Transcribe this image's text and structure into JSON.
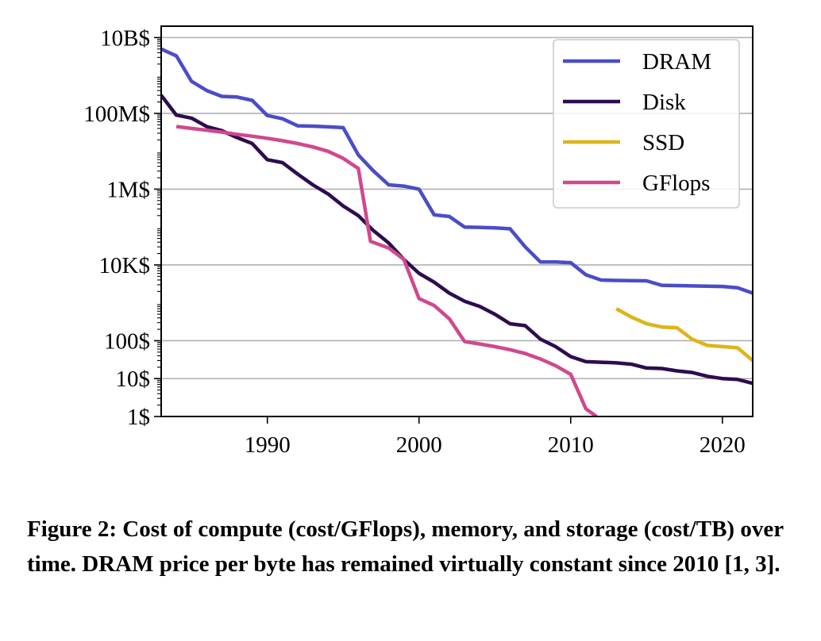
{
  "chart_data": {
    "type": "line",
    "y_scale": "log",
    "xlim": [
      1983,
      2022
    ],
    "ylim": [
      1,
      20000000000
    ],
    "grid": "horizontal",
    "legend_position": "top-right",
    "x_ticks": [
      {
        "value": 1990,
        "label": "1990"
      },
      {
        "value": 2000,
        "label": "2000"
      },
      {
        "value": 2010,
        "label": "2010"
      },
      {
        "value": 2020,
        "label": "2020"
      }
    ],
    "y_ticks": [
      {
        "value": 1,
        "label": "1$"
      },
      {
        "value": 10,
        "label": "10$"
      },
      {
        "value": 100,
        "label": "100$"
      },
      {
        "value": 10000,
        "label": "10K$"
      },
      {
        "value": 1000000,
        "label": "1M$"
      },
      {
        "value": 100000000,
        "label": "100M$"
      },
      {
        "value": 10000000000,
        "label": "10B$"
      }
    ],
    "series": [
      {
        "name": "DRAM",
        "color": "#4a4dc8",
        "points": [
          [
            1983,
            5000000000
          ],
          [
            1984,
            3300000000
          ],
          [
            1985,
            700000000
          ],
          [
            1986,
            400000000
          ],
          [
            1987,
            280000000
          ],
          [
            1988,
            270000000
          ],
          [
            1989,
            220000000
          ],
          [
            1990,
            88000000
          ],
          [
            1991,
            72000000
          ],
          [
            1992,
            47000000
          ],
          [
            1993,
            46000000
          ],
          [
            1994,
            44000000
          ],
          [
            1995,
            42000000
          ],
          [
            1996,
            8000000
          ],
          [
            1997,
            3000000
          ],
          [
            1998,
            1300000
          ],
          [
            1999,
            1200000
          ],
          [
            2000,
            1000000
          ],
          [
            2001,
            210000
          ],
          [
            2002,
            190000
          ],
          [
            2003,
            100000
          ],
          [
            2004,
            98000
          ],
          [
            2005,
            95000
          ],
          [
            2006,
            90000
          ],
          [
            2007,
            30000
          ],
          [
            2008,
            12000
          ],
          [
            2009,
            12000
          ],
          [
            2010,
            11500
          ],
          [
            2011,
            5500
          ],
          [
            2012,
            4000
          ],
          [
            2013,
            3900
          ],
          [
            2014,
            3850
          ],
          [
            2015,
            3800
          ],
          [
            2016,
            2900
          ],
          [
            2017,
            2850
          ],
          [
            2018,
            2800
          ],
          [
            2019,
            2750
          ],
          [
            2020,
            2700
          ],
          [
            2021,
            2500
          ],
          [
            2022,
            1800
          ]
        ]
      },
      {
        "name": "Disk",
        "color": "#2e0c4f",
        "points": [
          [
            1983,
            300000000
          ],
          [
            1984,
            90000000
          ],
          [
            1985,
            75000000
          ],
          [
            1986,
            45000000
          ],
          [
            1987,
            35000000
          ],
          [
            1988,
            23000000
          ],
          [
            1989,
            16000000
          ],
          [
            1990,
            6000000
          ],
          [
            1991,
            5000000
          ],
          [
            1992,
            2500000
          ],
          [
            1993,
            1300000
          ],
          [
            1994,
            750000
          ],
          [
            1995,
            360000
          ],
          [
            1996,
            200000
          ],
          [
            1997,
            80000
          ],
          [
            1998,
            38000
          ],
          [
            1999,
            14000
          ],
          [
            2000,
            6000
          ],
          [
            2001,
            3500
          ],
          [
            2002,
            1800
          ],
          [
            2003,
            1100
          ],
          [
            2004,
            800
          ],
          [
            2005,
            500
          ],
          [
            2006,
            280
          ],
          [
            2007,
            250
          ],
          [
            2008,
            110
          ],
          [
            2009,
            70
          ],
          [
            2010,
            38
          ],
          [
            2011,
            28
          ],
          [
            2012,
            27
          ],
          [
            2013,
            26
          ],
          [
            2014,
            24
          ],
          [
            2015,
            19
          ],
          [
            2016,
            18.5
          ],
          [
            2017,
            16
          ],
          [
            2018,
            14.5
          ],
          [
            2019,
            11.5
          ],
          [
            2020,
            10
          ],
          [
            2021,
            9.5
          ],
          [
            2022,
            7.5
          ]
        ]
      },
      {
        "name": "SSD",
        "color": "#dfb419",
        "points": [
          [
            2013,
            700
          ],
          [
            2014,
            420
          ],
          [
            2015,
            280
          ],
          [
            2016,
            230
          ],
          [
            2017,
            220
          ],
          [
            2018,
            110
          ],
          [
            2019,
            75
          ],
          [
            2020,
            70
          ],
          [
            2021,
            65
          ],
          [
            2022,
            30
          ]
        ]
      },
      {
        "name": "GFlops",
        "color": "#d0488e",
        "points": [
          [
            1984,
            45000000
          ],
          [
            1985,
            40000000
          ],
          [
            1986,
            36000000
          ],
          [
            1987,
            32000000
          ],
          [
            1988,
            28000000
          ],
          [
            1989,
            25000000
          ],
          [
            1990,
            22000000
          ],
          [
            1991,
            19000000
          ],
          [
            1992,
            16000000
          ],
          [
            1993,
            13000000
          ],
          [
            1994,
            10000000
          ],
          [
            1995,
            6500000
          ],
          [
            1996,
            3500000
          ],
          [
            1996.8,
            42000
          ],
          [
            1998,
            28000
          ],
          [
            1999,
            14000
          ],
          [
            2000,
            1300
          ],
          [
            2001,
            850
          ],
          [
            2002,
            380
          ],
          [
            2003,
            95
          ],
          [
            2004,
            82
          ],
          [
            2005,
            70
          ],
          [
            2006,
            58
          ],
          [
            2007,
            46
          ],
          [
            2008,
            33
          ],
          [
            2009,
            22
          ],
          [
            2010,
            13
          ],
          [
            2011,
            1.6
          ],
          [
            2011.7,
            1
          ]
        ]
      }
    ]
  },
  "caption": "Figure 2: Cost of compute (cost/GFlops), memory, and storage (cost/TB) over time. DRAM price per byte has remained virtually constant since 2010 [1, 3]."
}
